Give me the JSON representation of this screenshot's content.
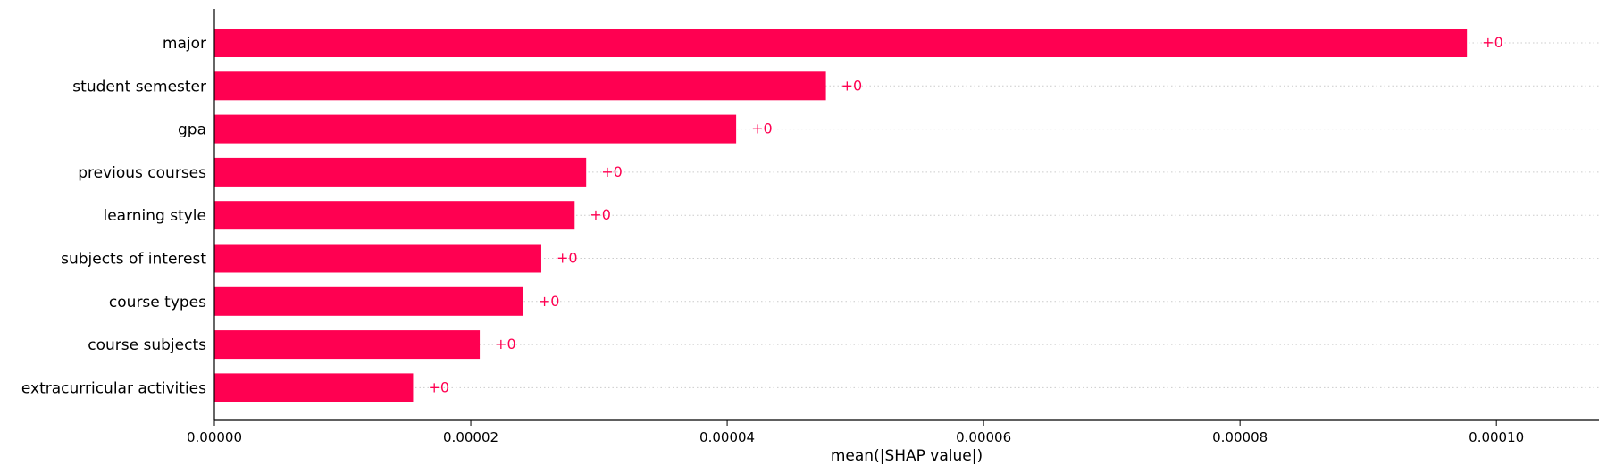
{
  "chart_data": {
    "type": "bar",
    "orientation": "horizontal",
    "title": "",
    "xlabel": "mean(|SHAP value|)",
    "ylabel": "",
    "categories": [
      "major",
      "student semester",
      "gpa",
      "previous courses",
      "learning style",
      "subjects of interest",
      "course types",
      "course subjects",
      "extracurricular activities"
    ],
    "values": [
      9.77e-05,
      4.77e-05,
      4.07e-05,
      2.9e-05,
      2.81e-05,
      2.55e-05,
      2.41e-05,
      2.07e-05,
      1.55e-05
    ],
    "data_labels": [
      "+0",
      "+0",
      "+0",
      "+0",
      "+0",
      "+0",
      "+0",
      "+0",
      "+0"
    ],
    "xlim": [
      0,
      0.000108
    ],
    "xticks": [
      0,
      2e-05,
      4e-05,
      6e-05,
      8e-05,
      0.0001
    ],
    "xtick_labels": [
      "0.00000",
      "0.00002",
      "0.00004",
      "0.00006",
      "0.00008",
      "0.00010"
    ],
    "grid": false,
    "row_guides": "dotted",
    "legend": "none",
    "colors": {
      "bar": "#ff0051",
      "label": "#ff0051",
      "axis": "#000000",
      "guide": "#cccccc"
    }
  }
}
